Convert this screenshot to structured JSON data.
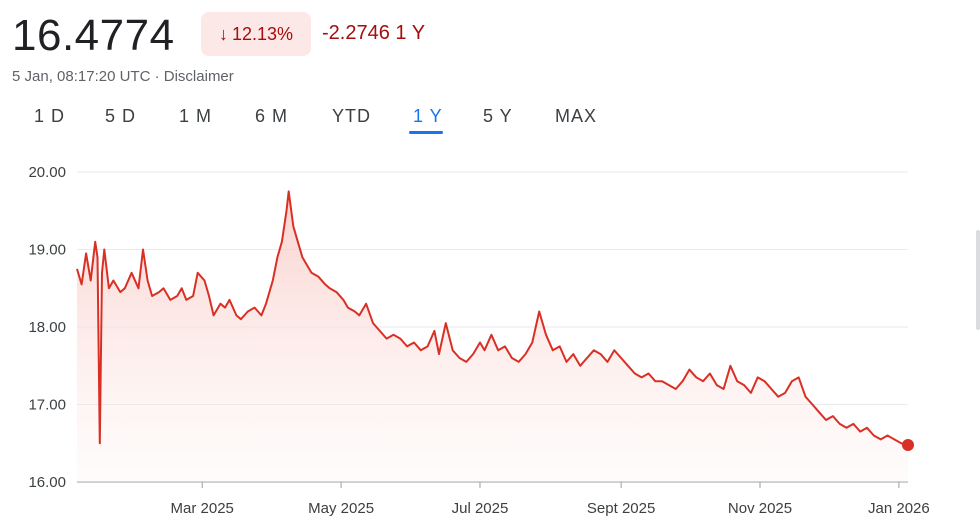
{
  "header": {
    "price": "16.4774",
    "percent_change": "12.13%",
    "abs_change": "-2.2746 1 Y",
    "timestamp": "5 Jan, 08:17:20 UTC",
    "separator": " · ",
    "disclaimer": "Disclaimer",
    "change_arrow_icon": "arrow-down-icon"
  },
  "ranges": [
    "1 D",
    "5 D",
    "1 M",
    "6 M",
    "YTD",
    "1 Y",
    "5 Y",
    "MAX"
  ],
  "active_range": "1 Y",
  "colors": {
    "line": "#d93025",
    "fill_top": "#f8c9c4",
    "negative_text": "#a50e0e",
    "pill_bg": "#fce8e6",
    "accent": "#1a73e8"
  },
  "chart_data": {
    "type": "area",
    "ylim": [
      16.0,
      20.0
    ],
    "yticks": [
      "20.00",
      "19.00",
      "18.00",
      "17.00",
      "16.00"
    ],
    "xticks": [
      {
        "label": "Mar 2025",
        "date": "2025-03-01"
      },
      {
        "label": "May 2025",
        "date": "2025-05-01"
      },
      {
        "label": "Jul 2025",
        "date": "2025-07-01"
      },
      {
        "label": "Sept 2025",
        "date": "2025-09-01"
      },
      {
        "label": "Nov 2025",
        "date": "2025-11-01"
      },
      {
        "label": "Jan 2026",
        "date": "2026-01-01"
      }
    ],
    "x_range": [
      "2025-01-05",
      "2026-01-05"
    ],
    "grid": true,
    "series": [
      {
        "points": [
          [
            "2025-01-05",
            18.75
          ],
          [
            "2025-01-07",
            18.55
          ],
          [
            "2025-01-09",
            18.95
          ],
          [
            "2025-01-11",
            18.6
          ],
          [
            "2025-01-13",
            19.1
          ],
          [
            "2025-01-14",
            18.9
          ],
          [
            "2025-01-15",
            16.5
          ],
          [
            "2025-01-16",
            18.7
          ],
          [
            "2025-01-17",
            19.0
          ],
          [
            "2025-01-19",
            18.5
          ],
          [
            "2025-01-21",
            18.6
          ],
          [
            "2025-01-24",
            18.45
          ],
          [
            "2025-01-26",
            18.5
          ],
          [
            "2025-01-29",
            18.7
          ],
          [
            "2025-02-01",
            18.5
          ],
          [
            "2025-02-03",
            19.0
          ],
          [
            "2025-02-05",
            18.6
          ],
          [
            "2025-02-07",
            18.4
          ],
          [
            "2025-02-10",
            18.45
          ],
          [
            "2025-02-12",
            18.5
          ],
          [
            "2025-02-15",
            18.35
          ],
          [
            "2025-02-18",
            18.4
          ],
          [
            "2025-02-20",
            18.5
          ],
          [
            "2025-02-22",
            18.35
          ],
          [
            "2025-02-25",
            18.4
          ],
          [
            "2025-02-27",
            18.7
          ],
          [
            "2025-03-02",
            18.6
          ],
          [
            "2025-03-04",
            18.4
          ],
          [
            "2025-03-06",
            18.15
          ],
          [
            "2025-03-09",
            18.3
          ],
          [
            "2025-03-11",
            18.25
          ],
          [
            "2025-03-13",
            18.35
          ],
          [
            "2025-03-16",
            18.15
          ],
          [
            "2025-03-18",
            18.1
          ],
          [
            "2025-03-21",
            18.2
          ],
          [
            "2025-03-24",
            18.25
          ],
          [
            "2025-03-27",
            18.15
          ],
          [
            "2025-03-29",
            18.3
          ],
          [
            "2025-04-01",
            18.6
          ],
          [
            "2025-04-03",
            18.9
          ],
          [
            "2025-04-05",
            19.1
          ],
          [
            "2025-04-07",
            19.5
          ],
          [
            "2025-04-08",
            19.75
          ],
          [
            "2025-04-10",
            19.3
          ],
          [
            "2025-04-12",
            19.1
          ],
          [
            "2025-04-14",
            18.9
          ],
          [
            "2025-04-16",
            18.8
          ],
          [
            "2025-04-18",
            18.7
          ],
          [
            "2025-04-21",
            18.65
          ],
          [
            "2025-04-24",
            18.55
          ],
          [
            "2025-04-26",
            18.5
          ],
          [
            "2025-04-29",
            18.45
          ],
          [
            "2025-05-02",
            18.35
          ],
          [
            "2025-05-04",
            18.25
          ],
          [
            "2025-05-07",
            18.2
          ],
          [
            "2025-05-09",
            18.15
          ],
          [
            "2025-05-12",
            18.3
          ],
          [
            "2025-05-15",
            18.05
          ],
          [
            "2025-05-18",
            17.95
          ],
          [
            "2025-05-21",
            17.85
          ],
          [
            "2025-05-24",
            17.9
          ],
          [
            "2025-05-27",
            17.85
          ],
          [
            "2025-05-30",
            17.75
          ],
          [
            "2025-06-02",
            17.8
          ],
          [
            "2025-06-05",
            17.7
          ],
          [
            "2025-06-08",
            17.75
          ],
          [
            "2025-06-11",
            17.95
          ],
          [
            "2025-06-13",
            17.65
          ],
          [
            "2025-06-16",
            18.05
          ],
          [
            "2025-06-19",
            17.7
          ],
          [
            "2025-06-22",
            17.6
          ],
          [
            "2025-06-25",
            17.55
          ],
          [
            "2025-06-28",
            17.65
          ],
          [
            "2025-07-01",
            17.8
          ],
          [
            "2025-07-03",
            17.7
          ],
          [
            "2025-07-06",
            17.9
          ],
          [
            "2025-07-09",
            17.7
          ],
          [
            "2025-07-12",
            17.75
          ],
          [
            "2025-07-15",
            17.6
          ],
          [
            "2025-07-18",
            17.55
          ],
          [
            "2025-07-21",
            17.65
          ],
          [
            "2025-07-24",
            17.8
          ],
          [
            "2025-07-27",
            18.2
          ],
          [
            "2025-07-30",
            17.9
          ],
          [
            "2025-08-02",
            17.7
          ],
          [
            "2025-08-05",
            17.75
          ],
          [
            "2025-08-08",
            17.55
          ],
          [
            "2025-08-11",
            17.65
          ],
          [
            "2025-08-14",
            17.5
          ],
          [
            "2025-08-17",
            17.6
          ],
          [
            "2025-08-20",
            17.7
          ],
          [
            "2025-08-23",
            17.65
          ],
          [
            "2025-08-26",
            17.55
          ],
          [
            "2025-08-29",
            17.7
          ],
          [
            "2025-09-01",
            17.6
          ],
          [
            "2025-09-04",
            17.5
          ],
          [
            "2025-09-07",
            17.4
          ],
          [
            "2025-09-10",
            17.35
          ],
          [
            "2025-09-13",
            17.4
          ],
          [
            "2025-09-16",
            17.3
          ],
          [
            "2025-09-19",
            17.3
          ],
          [
            "2025-09-22",
            17.25
          ],
          [
            "2025-09-25",
            17.2
          ],
          [
            "2025-09-28",
            17.3
          ],
          [
            "2025-10-01",
            17.45
          ],
          [
            "2025-10-04",
            17.35
          ],
          [
            "2025-10-07",
            17.3
          ],
          [
            "2025-10-10",
            17.4
          ],
          [
            "2025-10-13",
            17.25
          ],
          [
            "2025-10-16",
            17.2
          ],
          [
            "2025-10-19",
            17.5
          ],
          [
            "2025-10-22",
            17.3
          ],
          [
            "2025-10-25",
            17.25
          ],
          [
            "2025-10-28",
            17.15
          ],
          [
            "2025-10-31",
            17.35
          ],
          [
            "2025-11-03",
            17.3
          ],
          [
            "2025-11-06",
            17.2
          ],
          [
            "2025-11-09",
            17.1
          ],
          [
            "2025-11-12",
            17.15
          ],
          [
            "2025-11-15",
            17.3
          ],
          [
            "2025-11-18",
            17.35
          ],
          [
            "2025-11-21",
            17.1
          ],
          [
            "2025-11-24",
            17.0
          ],
          [
            "2025-11-27",
            16.9
          ],
          [
            "2025-11-30",
            16.8
          ],
          [
            "2025-12-03",
            16.85
          ],
          [
            "2025-12-06",
            16.75
          ],
          [
            "2025-12-09",
            16.7
          ],
          [
            "2025-12-12",
            16.75
          ],
          [
            "2025-12-15",
            16.65
          ],
          [
            "2025-12-18",
            16.7
          ],
          [
            "2025-12-21",
            16.6
          ],
          [
            "2025-12-24",
            16.55
          ],
          [
            "2025-12-27",
            16.6
          ],
          [
            "2025-12-30",
            16.55
          ],
          [
            "2026-01-02",
            16.5
          ],
          [
            "2026-01-05",
            16.4774
          ]
        ]
      }
    ]
  }
}
